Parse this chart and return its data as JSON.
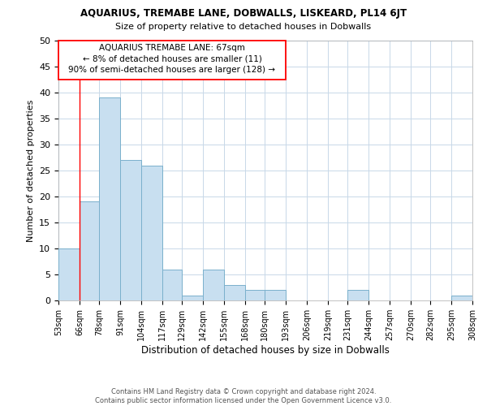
{
  "title": "AQUARIUS, TREMABE LANE, DOBWALLS, LISKEARD, PL14 6JT",
  "subtitle": "Size of property relative to detached houses in Dobwalls",
  "xlabel": "Distribution of detached houses by size in Dobwalls",
  "ylabel": "Number of detached properties",
  "bar_color": "#c8dff0",
  "bar_edge_color": "#7ab0cc",
  "bin_edges": [
    53,
    66,
    78,
    91,
    104,
    117,
    129,
    142,
    155,
    168,
    180,
    193,
    206,
    219,
    231,
    244,
    257,
    270,
    282,
    295,
    308
  ],
  "bin_labels": [
    "53sqm",
    "66sqm",
    "78sqm",
    "91sqm",
    "104sqm",
    "117sqm",
    "129sqm",
    "142sqm",
    "155sqm",
    "168sqm",
    "180sqm",
    "193sqm",
    "206sqm",
    "219sqm",
    "231sqm",
    "244sqm",
    "257sqm",
    "270sqm",
    "282sqm",
    "295sqm",
    "308sqm"
  ],
  "counts": [
    10,
    19,
    39,
    27,
    26,
    6,
    1,
    6,
    3,
    2,
    2,
    0,
    0,
    0,
    2,
    0,
    0,
    0,
    0,
    1
  ],
  "ylim": [
    0,
    50
  ],
  "yticks": [
    0,
    5,
    10,
    15,
    20,
    25,
    30,
    35,
    40,
    45,
    50
  ],
  "property_line_x": 66,
  "annotation_text_line1": "AQUARIUS TREMABE LANE: 67sqm",
  "annotation_text_line2": "← 8% of detached houses are smaller (11)",
  "annotation_text_line3": "90% of semi-detached houses are larger (128) →",
  "footer_line1": "Contains HM Land Registry data © Crown copyright and database right 2024.",
  "footer_line2": "Contains public sector information licensed under the Open Government Licence v3.0.",
  "background_color": "#ffffff",
  "grid_color": "#c8d8e8"
}
